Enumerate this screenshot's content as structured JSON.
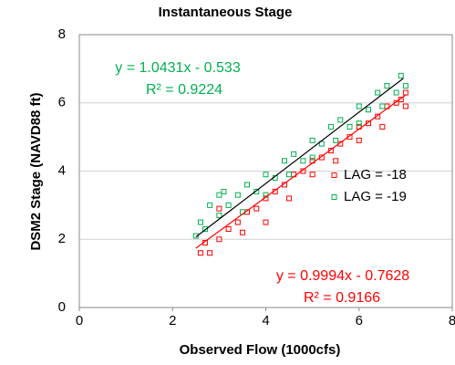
{
  "chart_data": {
    "type": "scatter",
    "title": "Instantaneous Stage",
    "x_label": "Observed Flow (1000cfs)",
    "y_label": "DSM2 Stage (NAVD88 ft)",
    "xlim": [
      0,
      8
    ],
    "xticks": [
      0,
      2,
      4,
      6,
      8
    ],
    "ylim": [
      0,
      8
    ],
    "yticks": [
      0,
      2,
      4,
      6,
      8
    ],
    "grid": true,
    "legend": "right",
    "series": [
      {
        "name": "LAG = -18",
        "color": "#ff0000",
        "x": [
          2.6,
          2.7,
          2.8,
          3.0,
          3.0,
          3.2,
          3.4,
          3.5,
          3.6,
          3.8,
          4.0,
          4.0,
          4.2,
          4.4,
          4.5,
          4.6,
          4.8,
          5.0,
          5.0,
          5.2,
          5.4,
          5.5,
          5.6,
          5.8,
          6.0,
          6.0,
          6.2,
          6.4,
          6.5,
          6.6,
          6.8,
          6.9,
          7.0,
          7.0
        ],
        "values": [
          1.6,
          1.9,
          1.6,
          2.0,
          2.9,
          2.3,
          2.5,
          2.2,
          2.8,
          2.9,
          2.5,
          3.2,
          3.4,
          3.6,
          3.2,
          3.9,
          4.0,
          3.9,
          4.3,
          4.4,
          4.6,
          4.3,
          4.8,
          5.0,
          4.9,
          5.3,
          5.4,
          5.6,
          5.3,
          5.9,
          6.0,
          6.1,
          5.9,
          6.3
        ],
        "trendline": {
          "color": "#ff0000",
          "x": [
            2.5,
            7.0
          ],
          "values": [
            1.74,
            6.23
          ]
        }
      },
      {
        "name": "LAG = -19",
        "color": "#00b050",
        "x": [
          2.5,
          2.6,
          2.7,
          2.8,
          3.0,
          3.0,
          3.1,
          3.2,
          3.4,
          3.5,
          3.6,
          3.8,
          4.0,
          4.0,
          4.2,
          4.4,
          4.5,
          4.6,
          4.8,
          5.0,
          5.0,
          5.2,
          5.4,
          5.5,
          5.6,
          5.8,
          6.0,
          6.0,
          6.2,
          6.4,
          6.5,
          6.6,
          6.8,
          6.9,
          7.0
        ],
        "values": [
          2.1,
          2.5,
          2.3,
          3.0,
          2.7,
          3.3,
          3.4,
          3.0,
          3.3,
          2.8,
          3.6,
          3.4,
          3.9,
          3.3,
          3.8,
          4.3,
          3.9,
          4.5,
          4.3,
          4.9,
          4.4,
          4.8,
          5.3,
          4.9,
          5.5,
          5.3,
          5.9,
          5.4,
          5.8,
          6.3,
          5.9,
          6.5,
          6.3,
          6.8,
          6.5
        ],
        "trendline": {
          "color": "#000000",
          "x": [
            2.5,
            6.95
          ],
          "values": [
            2.07,
            6.72
          ]
        }
      }
    ],
    "annotations": [
      {
        "text": "y = 1.0431x - 0.533",
        "color": "#00b050"
      },
      {
        "text": "R² = 0.9224",
        "color": "#00b050"
      },
      {
        "text": "y = 0.9994x - 0.7628",
        "color": "#ff0000"
      },
      {
        "text": "R² = 0.9166",
        "color": "#ff0000"
      }
    ]
  }
}
